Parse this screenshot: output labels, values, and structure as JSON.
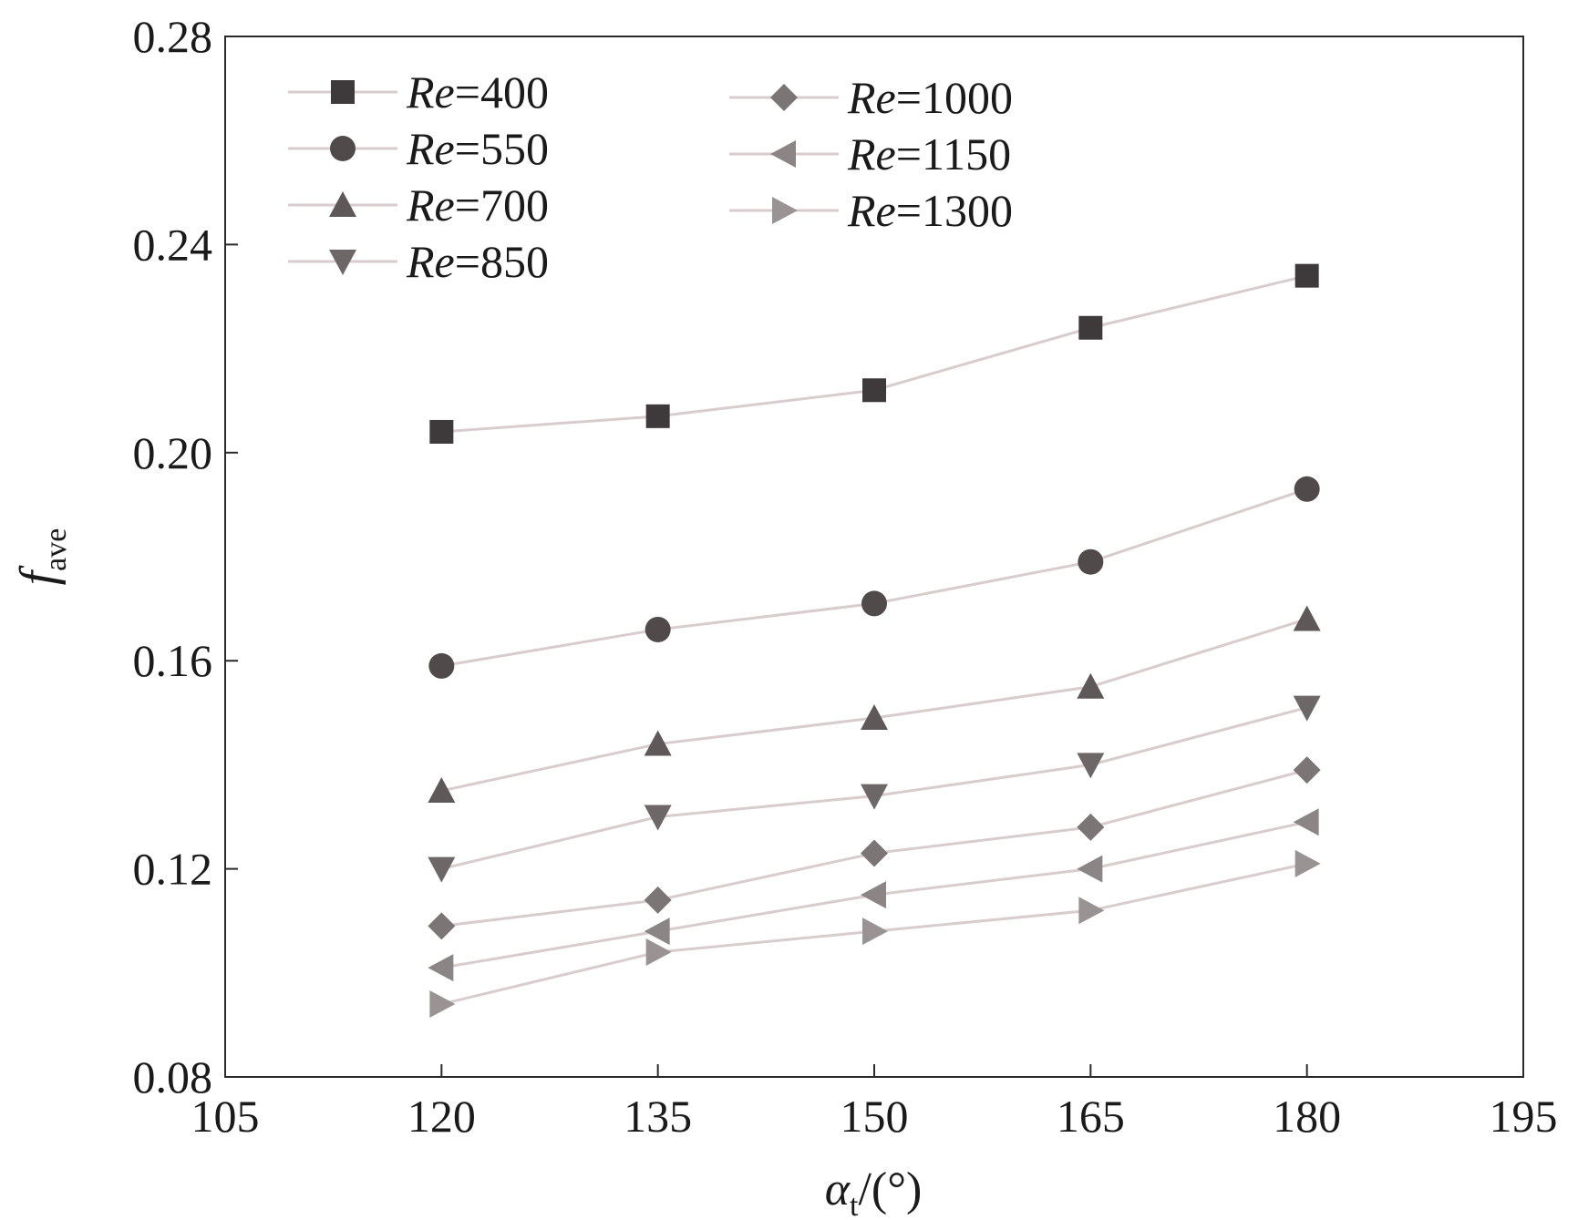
{
  "chart_data": {
    "type": "line",
    "xlabel_symbol": "α",
    "xlabel_sub": "t",
    "xlabel_unit": "/(°)",
    "ylabel_symbol": "f",
    "ylabel_sub": "ave",
    "xlim": [
      105,
      195
    ],
    "ylim": [
      0.08,
      0.28
    ],
    "xticks": [
      "105",
      "120",
      "135",
      "150",
      "165",
      "180",
      "195"
    ],
    "yticks": [
      "0.08",
      "0.12",
      "0.16",
      "0.20",
      "0.24",
      "0.28"
    ],
    "x": [
      120,
      135,
      150,
      165,
      180
    ],
    "grid": false,
    "legend_placement": "top-left",
    "line_color": "#d8cccc",
    "series": [
      {
        "name": "400",
        "marker": "square",
        "color": "#3e3a3b",
        "values": [
          0.204,
          0.207,
          0.212,
          0.224,
          0.234
        ]
      },
      {
        "name": "550",
        "marker": "circle",
        "color": "#504a4b",
        "values": [
          0.159,
          0.166,
          0.171,
          0.179,
          0.193
        ]
      },
      {
        "name": "700",
        "marker": "triangle-up",
        "color": "#5f5859",
        "values": [
          0.135,
          0.144,
          0.149,
          0.155,
          0.168
        ]
      },
      {
        "name": "850",
        "marker": "triangle-down",
        "color": "#6e6768",
        "values": [
          0.12,
          0.13,
          0.134,
          0.14,
          0.151
        ]
      },
      {
        "name": "1000",
        "marker": "diamond",
        "color": "#7c7576",
        "values": [
          0.109,
          0.114,
          0.123,
          0.128,
          0.139
        ]
      },
      {
        "name": "1150",
        "marker": "triangle-left",
        "color": "#8c8586",
        "values": [
          0.101,
          0.108,
          0.115,
          0.12,
          0.129
        ]
      },
      {
        "name": "1300",
        "marker": "triangle-right",
        "color": "#9a9394",
        "values": [
          0.094,
          0.104,
          0.108,
          0.112,
          0.121
        ]
      }
    ],
    "legend_prefix": "Re",
    "legend_eq": "="
  }
}
